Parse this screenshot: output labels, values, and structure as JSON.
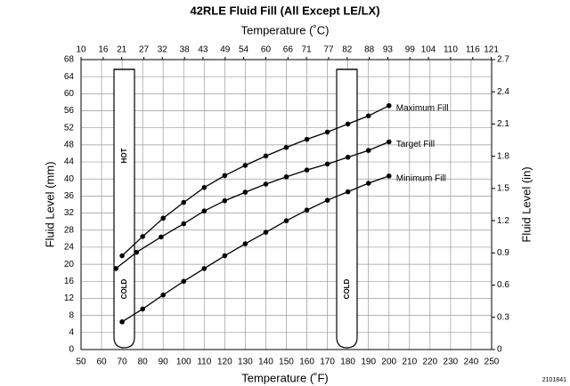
{
  "chart_data": {
    "type": "line",
    "title": "42RLE Fluid Fill (All Except LE/LX)",
    "xlabel": "Temperature (˚F)",
    "x2label": "Temperature (˚C)",
    "ylabel": "Fluid Level (mm)",
    "y2label": "Fluid Level (in)",
    "xlim": [
      50,
      250
    ],
    "xticks": [
      50,
      60,
      70,
      80,
      90,
      100,
      110,
      120,
      130,
      140,
      150,
      160,
      170,
      180,
      190,
      200,
      210,
      220,
      230,
      240,
      250
    ],
    "x2lim": [
      10,
      121.1
    ],
    "x2ticks": [
      10,
      16,
      21,
      27,
      32,
      38,
      43,
      49,
      54,
      60,
      66,
      71,
      77,
      82,
      88,
      93,
      99,
      104,
      110,
      116,
      121
    ],
    "ylim": [
      0,
      68
    ],
    "yticks": [
      0,
      4,
      8,
      12,
      16,
      20,
      24,
      28,
      32,
      36,
      40,
      44,
      48,
      52,
      56,
      60,
      64,
      68
    ],
    "y2lim": [
      0,
      2.7
    ],
    "y2ticks": [
      0,
      0.3,
      0.6,
      0.9,
      1.2,
      1.5,
      1.8,
      2.1,
      2.4,
      2.7
    ],
    "grid": true,
    "color": "#000000",
    "series": [
      {
        "name": "Maximum Fill",
        "x": [
          70,
          80,
          90,
          100,
          110,
          120,
          130,
          140,
          150,
          160,
          170,
          180,
          190,
          200
        ],
        "values": [
          22,
          26.5,
          30.8,
          34.5,
          38,
          40.8,
          43.2,
          45.4,
          47.4,
          49.3,
          51,
          52.9,
          54.8,
          57.2
        ]
      },
      {
        "name": "Target Fill",
        "x": [
          67,
          77,
          89,
          100,
          110,
          120,
          130,
          140,
          150,
          160,
          170,
          180,
          190,
          200
        ],
        "values": [
          19,
          22.8,
          26.4,
          29.5,
          32.5,
          34.9,
          36.9,
          38.8,
          40.5,
          42.1,
          43.5,
          45.1,
          46.7,
          48.7
        ]
      },
      {
        "name": "Minimum Fill",
        "x": [
          70,
          80,
          90,
          100,
          110,
          120,
          130,
          140,
          150,
          160,
          170,
          180,
          190,
          200
        ],
        "values": [
          6.5,
          9.5,
          12.8,
          16,
          19,
          22,
          24.8,
          27.5,
          30.2,
          32.7,
          35,
          37,
          39,
          40.7
        ]
      }
    ],
    "annotations": [
      "HOT",
      "COLD",
      "COLD"
    ],
    "figure_id": "2101841"
  }
}
